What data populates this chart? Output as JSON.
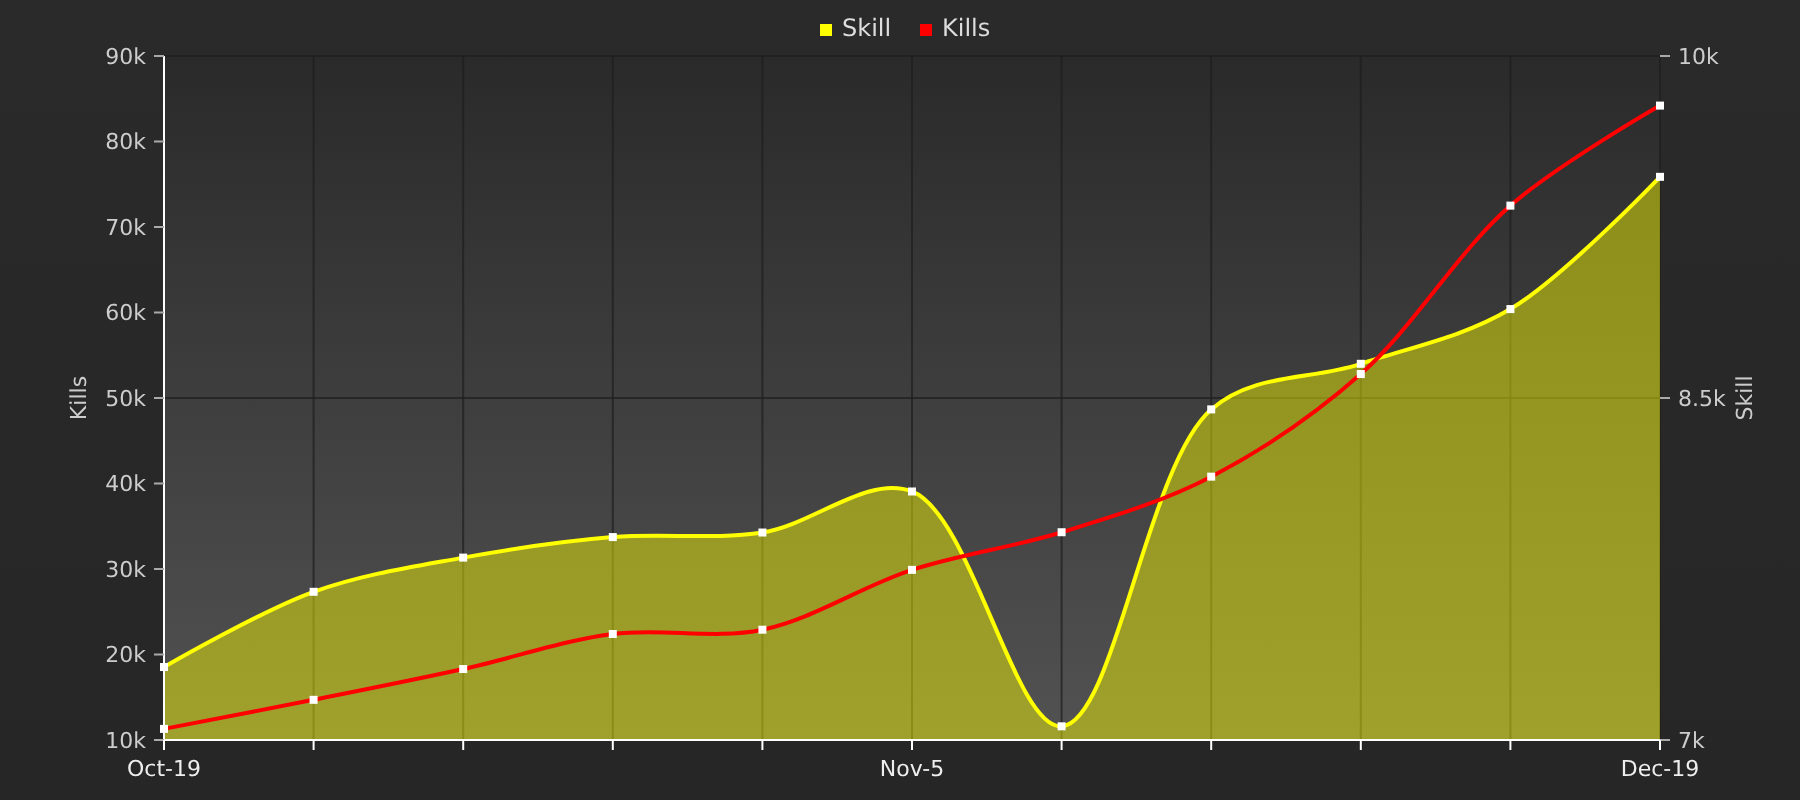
{
  "chart_data": {
    "type": "line",
    "xlabel": null,
    "ylabel": "Kills",
    "y2label": "Skill",
    "categories": [
      "Oct-19",
      null,
      null,
      null,
      null,
      "Nov-5",
      null,
      null,
      null,
      null,
      "Dec-19"
    ],
    "series": [
      {
        "name": "Skill",
        "type": "area",
        "axis": "y2",
        "color": "#ffff00",
        "values": [
          7320,
          7650,
          7800,
          7890,
          7910,
          8090,
          7060,
          8450,
          8650,
          8890,
          9470
        ]
      },
      {
        "name": "Kills",
        "color": "#ff0000",
        "values": [
          11300,
          14700,
          18300,
          22400,
          22900,
          29900,
          34300,
          40800,
          52800,
          72500,
          84200
        ]
      }
    ],
    "ylim": [
      10000,
      90000
    ],
    "yticks": [
      {
        "value": 10000,
        "label": "10k"
      },
      {
        "value": 20000,
        "label": "20k"
      },
      {
        "value": 30000,
        "label": "30k"
      },
      {
        "value": 40000,
        "label": "40k"
      },
      {
        "value": 50000,
        "label": "50k"
      },
      {
        "value": 60000,
        "label": "60k"
      },
      {
        "value": 70000,
        "label": "70k"
      },
      {
        "value": 80000,
        "label": "80k"
      },
      {
        "value": 90000,
        "label": "90k"
      }
    ],
    "y2lim": [
      7000,
      10000
    ],
    "y2ticks": [
      {
        "value": 7000,
        "label": "7k"
      },
      {
        "value": 8500,
        "label": "8.5k"
      },
      {
        "value": 10000,
        "label": "10k"
      }
    ],
    "grid": true,
    "legend": "top",
    "marker": "square",
    "line_style": "solid"
  }
}
